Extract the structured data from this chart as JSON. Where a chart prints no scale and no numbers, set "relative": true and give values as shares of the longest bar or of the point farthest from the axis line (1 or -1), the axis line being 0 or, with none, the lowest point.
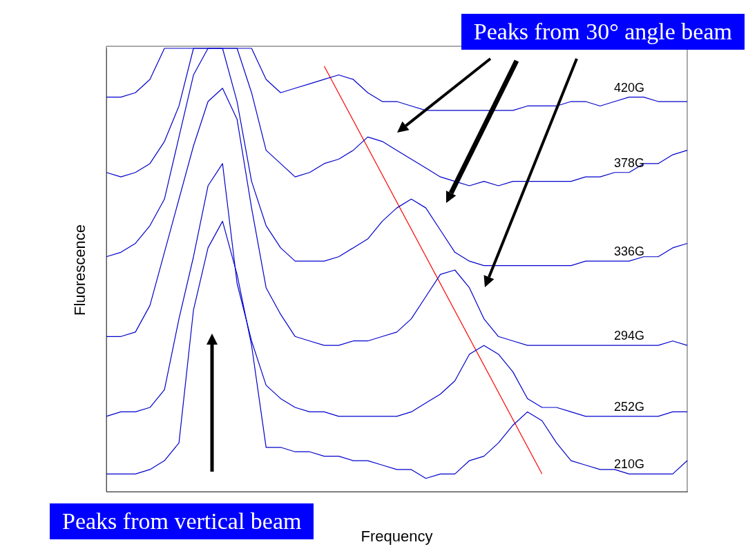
{
  "chart_data": {
    "type": "line",
    "xlabel": "Frequency",
    "ylabel": "Fluorescence",
    "relative": true,
    "marker": "none",
    "categories": [
      null,
      null,
      null,
      null,
      null,
      null,
      null,
      null,
      null,
      null,
      null,
      null,
      null,
      null,
      null,
      null,
      null,
      null,
      null,
      null,
      null,
      null,
      null,
      null,
      null,
      null,
      null,
      null,
      null,
      null,
      null,
      null,
      null,
      null,
      null,
      null,
      null,
      null,
      null,
      null,
      null
    ],
    "series": [
      {
        "name": "420G",
        "color": "#0000cc",
        "values": [
          0.89,
          0.89,
          0.9,
          0.93,
          1,
          1,
          1,
          1,
          1,
          1,
          1,
          0.93,
          0.9,
          0.91,
          0.92,
          0.93,
          0.94,
          0.93,
          0.9,
          0.88,
          0.88,
          0.87,
          0.86,
          0.86,
          0.86,
          0.86,
          0.86,
          0.86,
          0.86,
          0.87,
          0.87,
          0.87,
          0.88,
          0.88,
          0.87,
          0.88,
          0.89,
          0.89,
          0.88,
          0.88,
          0.88
        ]
      },
      {
        "name": "378G",
        "color": "#0000cc",
        "values": [
          0.72,
          0.71,
          0.72,
          0.74,
          0.79,
          0.87,
          1,
          1,
          1,
          1,
          0.9,
          0.77,
          0.74,
          0.71,
          0.72,
          0.74,
          0.75,
          0.77,
          0.8,
          0.79,
          0.77,
          0.75,
          0.73,
          0.71,
          0.7,
          0.69,
          0.7,
          0.69,
          0.7,
          0.7,
          0.7,
          0.7,
          0.7,
          0.71,
          0.71,
          0.72,
          0.72,
          0.74,
          0.74,
          0.76,
          0.77
        ]
      },
      {
        "name": "336G",
        "color": "#0000cc",
        "values": [
          0.53,
          0.54,
          0.56,
          0.6,
          0.66,
          0.8,
          0.94,
          1,
          1,
          0.88,
          0.7,
          0.6,
          0.55,
          0.52,
          0.52,
          0.52,
          0.53,
          0.55,
          0.57,
          0.61,
          0.64,
          0.66,
          0.64,
          0.59,
          0.54,
          0.52,
          0.51,
          0.51,
          0.51,
          0.51,
          0.51,
          0.51,
          0.51,
          0.52,
          0.52,
          0.52,
          0.52,
          0.53,
          0.53,
          0.55,
          0.56
        ]
      },
      {
        "name": "294G",
        "color": "#0000cc",
        "values": [
          0.35,
          0.35,
          0.36,
          0.42,
          0.54,
          0.66,
          0.78,
          0.88,
          0.91,
          0.84,
          0.64,
          0.46,
          0.4,
          0.35,
          0.34,
          0.33,
          0.33,
          0.34,
          0.34,
          0.35,
          0.36,
          0.39,
          0.44,
          0.49,
          0.5,
          0.46,
          0.39,
          0.35,
          0.34,
          0.33,
          0.33,
          0.33,
          0.33,
          0.33,
          0.33,
          0.33,
          0.33,
          0.33,
          0.33,
          0.34,
          0.33
        ]
      },
      {
        "name": "252G",
        "color": "#0000cc",
        "values": [
          0.17,
          0.18,
          0.18,
          0.19,
          0.23,
          0.39,
          0.53,
          0.69,
          0.74,
          0.47,
          0.34,
          0.24,
          0.21,
          0.19,
          0.18,
          0.18,
          0.17,
          0.17,
          0.17,
          0.17,
          0.17,
          0.18,
          0.2,
          0.22,
          0.25,
          0.31,
          0.33,
          0.31,
          0.27,
          0.21,
          0.19,
          0.19,
          0.18,
          0.17,
          0.17,
          0.17,
          0.17,
          0.17,
          0.17,
          0.18,
          0.18
        ]
      },
      {
        "name": "210G",
        "color": "#0000cc",
        "values": [
          0.04,
          0.04,
          0.04,
          0.05,
          0.07,
          0.11,
          0.41,
          0.55,
          0.61,
          0.49,
          0.33,
          0.1,
          0.1,
          0.09,
          0.09,
          0.08,
          0.08,
          0.07,
          0.07,
          0.06,
          0.05,
          0.05,
          0.03,
          0.04,
          0.04,
          0.07,
          0.08,
          0.11,
          0.15,
          0.18,
          0.16,
          0.11,
          0.07,
          0.06,
          0.05,
          0.05,
          0.04,
          0.04,
          0.04,
          0.04,
          0.07
        ]
      },
      {
        "color": "#ff0000",
        "values": [
          null,
          null,
          null,
          null,
          null,
          null,
          null,
          null,
          null,
          null,
          null,
          null,
          null,
          null,
          null,
          0.96,
          null,
          null,
          null,
          null,
          null,
          null,
          null,
          null,
          null,
          null,
          null,
          null,
          null,
          null,
          0.04,
          null,
          null,
          null,
          null,
          null,
          null,
          null,
          null,
          null,
          null
        ]
      }
    ],
    "annotations": [
      "Peaks from 30° angle beam",
      "Peaks from vertical beam"
    ]
  }
}
